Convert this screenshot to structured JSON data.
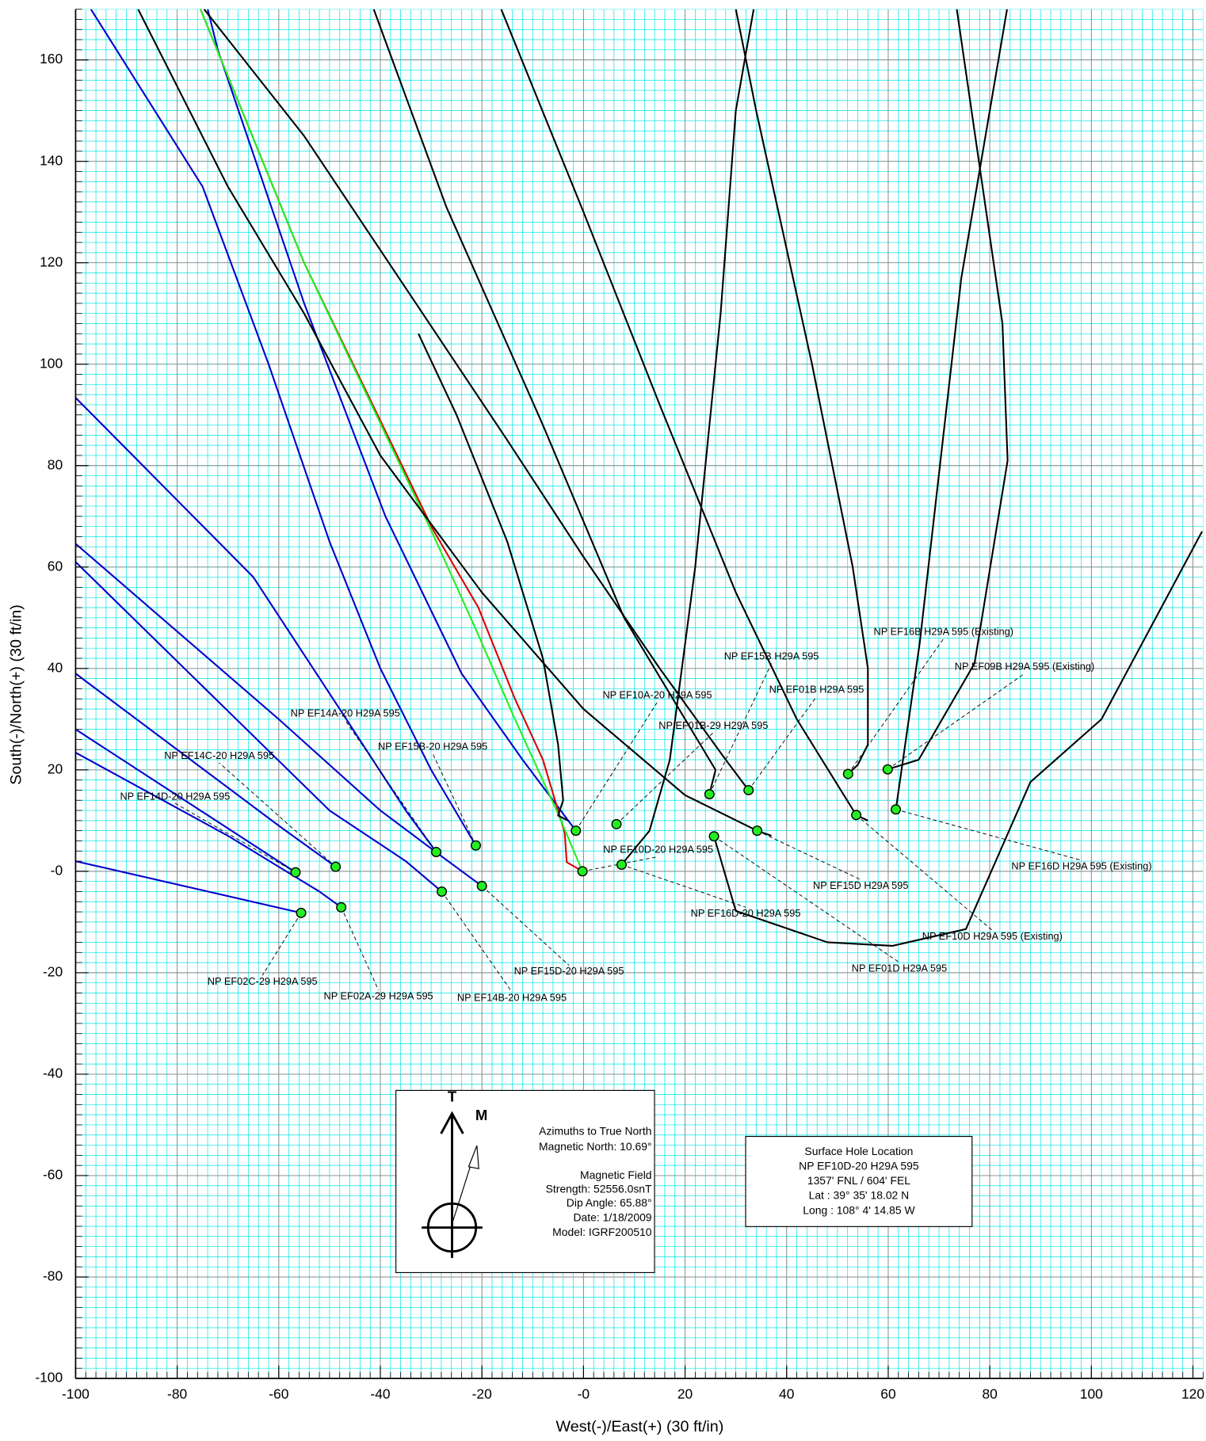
{
  "chart_data": {
    "type": "line",
    "x_label": "West(-)/East(+) (30 ft/in)",
    "y_label": "South(-)/North(+) (30 ft/in)",
    "xlim": [
      -100,
      122
    ],
    "ylim": [
      -100,
      170
    ],
    "xticks": [
      -100,
      -80,
      -60,
      -40,
      -20,
      {
        "value": 0,
        "label": "-0"
      },
      20,
      40,
      60,
      80,
      100,
      120
    ],
    "yticks": [
      -100,
      -80,
      -60,
      -40,
      -20,
      {
        "value": 0,
        "label": "-0"
      },
      20,
      40,
      60,
      80,
      100,
      120,
      140,
      160
    ],
    "grid": true,
    "minor_grid_step": 2,
    "grid_color": "#888888",
    "minor_grid_color": "#00e5e5",
    "marker_color": "#22ee22",
    "series": [
      {
        "color": "#0000cc",
        "x": [
          -55.6,
          -100
        ],
        "y": [
          -8.2,
          2
        ]
      },
      {
        "color": "#0000cc",
        "x": [
          -47.7,
          -52,
          -70,
          -100
        ],
        "y": [
          -7.1,
          -4,
          7,
          23.4
        ]
      },
      {
        "color": "#0000cc",
        "x": [
          -56.7,
          -100
        ],
        "y": [
          -0.2,
          28
        ]
      },
      {
        "color": "#0000cc",
        "x": [
          -48.8,
          -60,
          -100
        ],
        "y": [
          0.9,
          9,
          39
        ]
      },
      {
        "color": "#0000cc",
        "x": [
          -27.9,
          -35,
          -50,
          -100
        ],
        "y": [
          -4,
          2,
          12,
          61
        ]
      },
      {
        "color": "#0000cc",
        "x": [
          -20,
          -28,
          -40,
          -60,
          -100
        ],
        "y": [
          -2.9,
          3,
          12,
          30,
          64.6
        ]
      },
      {
        "color": "#0000cc",
        "x": [
          -29,
          -35,
          -48,
          -65,
          -100
        ],
        "y": [
          3.8,
          12,
          32,
          58,
          93.4
        ]
      },
      {
        "color": "#0000cc",
        "x": [
          -21.2,
          -30,
          -40,
          -50,
          -62,
          -75,
          -97
        ],
        "y": [
          5.1,
          20,
          40,
          65,
          100,
          135,
          170
        ]
      },
      {
        "color": "#0000cc",
        "x": [
          -1.5,
          -12,
          -24,
          -39,
          -55,
          -72,
          -74
        ],
        "y": [
          8,
          22,
          39,
          70,
          112,
          162,
          170
        ]
      },
      {
        "color": "#dd0000",
        "x": [
          -0.2,
          -3.3,
          -3.7,
          -8,
          -13.5,
          -20.7,
          -29.7,
          -55,
          -75.4
        ],
        "y": [
          0,
          1.8,
          7.6,
          22,
          34,
          52,
          67.5,
          120,
          170
        ]
      },
      {
        "color": "#22ee22",
        "x": [
          -0.2,
          -5.3,
          -13.5,
          -20.7,
          -29.7,
          -55,
          -75.4
        ],
        "y": [
          0,
          12,
          30,
          46.6,
          66.6,
          120,
          170
        ]
      },
      {
        "color": "#000000",
        "x": [
          37,
          34.2,
          20,
          0,
          -20,
          -40,
          -55,
          -70,
          -87.7
        ],
        "y": [
          7,
          8,
          15,
          32,
          55,
          82,
          110,
          135,
          170
        ]
      },
      {
        "color": "#000000",
        "x": [
          32.5,
          28,
          15,
          0,
          -15,
          -35,
          -55,
          -74.7
        ],
        "y": [
          16,
          22,
          40,
          62,
          85,
          115,
          145,
          170
        ]
      },
      {
        "color": "#000000",
        "x": [
          -32.5,
          -25,
          -15,
          -8,
          -5,
          -4,
          -5,
          -3
        ],
        "y": [
          106,
          90,
          65,
          42,
          25,
          14,
          11,
          10
        ]
      },
      {
        "color": "#000000",
        "x": [
          -41.3,
          -27,
          -8,
          8,
          20,
          26,
          24.8
        ],
        "y": [
          170,
          131,
          88,
          50,
          30,
          20,
          15.2
        ]
      },
      {
        "color": "#000000",
        "x": [
          -16.2,
          0,
          15,
          30,
          42,
          53.7,
          56
        ],
        "y": [
          170,
          130,
          92,
          55,
          30,
          11.1,
          10
        ]
      },
      {
        "color": "#000000",
        "x": [
          7.5,
          13,
          17,
          22,
          27,
          30,
          33.5
        ],
        "y": [
          1.3,
          8,
          22,
          60,
          110,
          150,
          170
        ]
      },
      {
        "color": "#000000",
        "x": [
          30,
          34,
          45,
          53,
          56,
          56,
          54,
          52.1
        ],
        "y": [
          170,
          150,
          100,
          60,
          40,
          25,
          21,
          19.2
        ]
      },
      {
        "color": "#000000",
        "x": [
          73.5,
          82.5,
          83.5,
          77,
          66,
          59.9
        ],
        "y": [
          170,
          108,
          81,
          41,
          22,
          20.1
        ]
      },
      {
        "color": "#000000",
        "x": [
          83.4,
          74.4,
          66.2,
          61.5
        ],
        "y": [
          170,
          117,
          45,
          12.2
        ]
      },
      {
        "color": "#000000",
        "x": [
          25.7,
          30,
          48,
          60.8,
          75.3,
          88,
          102,
          121.8
        ],
        "y": [
          6.9,
          -7.8,
          -14,
          -14.7,
          -11.4,
          17.6,
          30,
          67
        ]
      }
    ],
    "wells": [
      {
        "label": "NP EF10A-20 H29A 595",
        "x": -1.5,
        "y": 8
      },
      {
        "label": "NP EF01B-29 H29A 595",
        "x": 6.5,
        "y": 9.3
      },
      {
        "label": "NP EF10D-20 H29A 595",
        "x": -0.2,
        "y": 0
      },
      {
        "label": "NP EF16D-20 H29A 595",
        "x": 7.5,
        "y": 1.3
      },
      {
        "label": "NP EF15B H29A 595",
        "x": 24.8,
        "y": 15.2
      },
      {
        "label": "NP EF01B H29A 595",
        "x": 32.5,
        "y": 16
      },
      {
        "label": "NP EF15D H29A 595",
        "x": 34.2,
        "y": 8
      },
      {
        "label": "NP EF01D H29A 595",
        "x": 25.7,
        "y": 6.9
      },
      {
        "label": "NP EF16B H29A 595 (Existing)",
        "x": 52.1,
        "y": 19.2
      },
      {
        "label": "NP EF09B H29A 595 (Existing)",
        "x": 59.9,
        "y": 20.1
      },
      {
        "label": "NP EF10D H29A 595 (Existing)",
        "x": 53.7,
        "y": 11.1
      },
      {
        "label": "NP EF16D H29A 595 (Existing)",
        "x": 61.5,
        "y": 12.2
      },
      {
        "label": "NP EF14A-20 H29A 595",
        "x": -29,
        "y": 3.8
      },
      {
        "label": "NP EF15B-20 H29A 595",
        "x": -21.2,
        "y": 5.1
      },
      {
        "label": "NP EF14C-20 H29A 595",
        "x": -48.8,
        "y": 0.9
      },
      {
        "label": "NP EF14D-20 H29A 595",
        "x": -56.7,
        "y": -0.2
      },
      {
        "label": "NP EF02C-29 H29A 595",
        "x": -55.6,
        "y": -8.2
      },
      {
        "label": "NP EF02A-29 H29A 595",
        "x": -47.7,
        "y": -7.1
      },
      {
        "label": "NP EF14B-20 H29A 595",
        "x": -27.9,
        "y": -4
      },
      {
        "label": "NP EF15D-20 H29A 595",
        "x": -20,
        "y": -2.9
      }
    ],
    "north_labels": [
      "T",
      "M"
    ],
    "info_boxes": [
      {
        "lines": [
          "Azimuths to True North",
          "Magnetic North: 10.69°",
          "Magnetic Field",
          "Strength: 52556.0snT",
          "Dip Angle: 65.88°",
          "Date: 1/18/2009",
          "Model: IGRF200510"
        ]
      },
      {
        "lines": [
          "Surface Hole Location",
          "NP EF10D-20 H29A 595",
          "1357' FNL / 604' FEL",
          "Lat :  39° 35' 18.02 N",
          "Long :  108° 4' 14.85 W"
        ]
      }
    ]
  }
}
